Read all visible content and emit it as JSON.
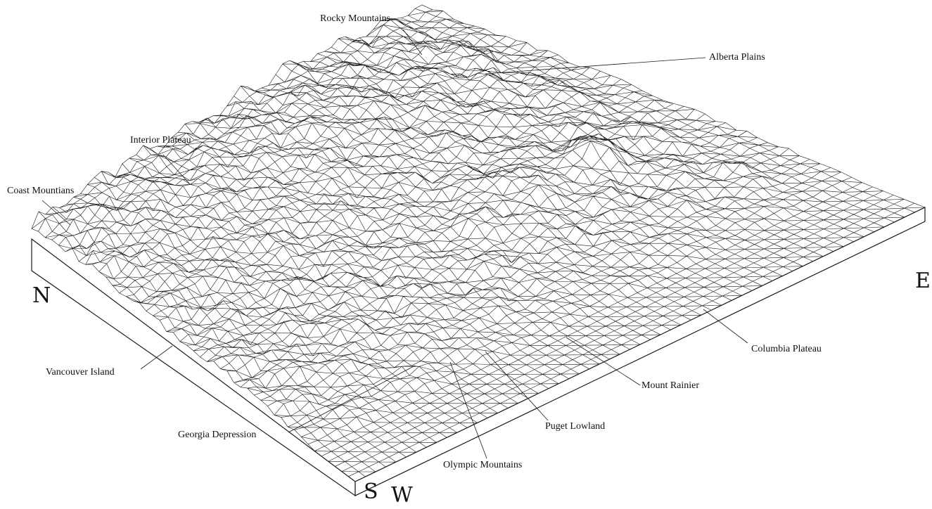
{
  "labels": {
    "rocky_mountains": "Rocky Mountains",
    "alberta_plains": "Alberta Plains",
    "interior_plateau": "Interior Plateau",
    "coast_mountains": "Coast Mountians",
    "vancouver_island": "Vancouver Island",
    "georgia_depression": "Georgia Depression",
    "olympic_mountains": "Olympic Mountains",
    "puget_lowland": "Puget Lowland",
    "mount_rainier": "Mount Rainier",
    "columbia_plateau": "Columbia Plateau"
  },
  "compass": {
    "north": "N",
    "east": "E",
    "south": "S",
    "west": "W"
  },
  "colors": {
    "line": "#1a1a1a",
    "background": "#ffffff"
  }
}
